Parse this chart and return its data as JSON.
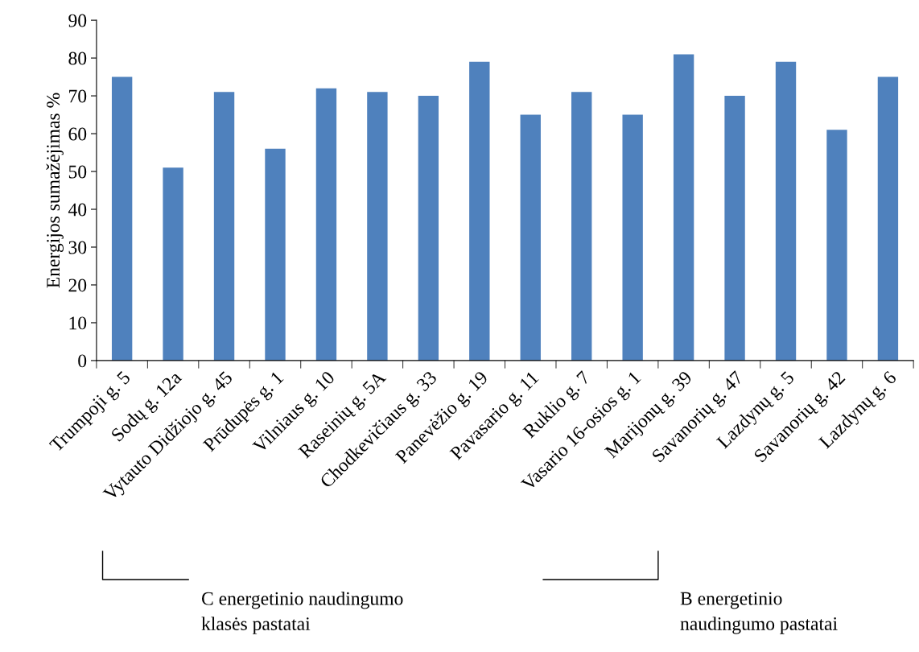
{
  "chart_data": {
    "type": "bar",
    "ylabel": "Energijos sumažėjimas %",
    "categories": [
      "Trumpoji g. 5",
      "Sodų g. 12a",
      "Vytauto Didžiojo g. 45",
      "Prūdupės g. 1",
      "Vilniaus g. 10",
      "Raseinių g. 5A",
      "Chodkevičiaus g. 33",
      "Panevėžio g. 19",
      "Pavasario g. 11",
      "Ruklio g. 7",
      "Vasario 16-osios g. 1",
      "Marijonų g. 39",
      "Savanorių g. 47",
      "Lazdynų g. 5",
      "Savanorių g. 42",
      "Lazdynų g. 6"
    ],
    "values": [
      75,
      51,
      71,
      56,
      72,
      71,
      70,
      79,
      65,
      71,
      65,
      81,
      70,
      79,
      61,
      75
    ],
    "color": "#4f81bd",
    "ylim": [
      0,
      90
    ],
    "yticks": [
      0,
      10,
      20,
      30,
      40,
      50,
      60,
      70,
      80,
      90
    ],
    "grid": false,
    "annotations": [
      "C energetinio naudingumo\nklasės pastatai",
      "B energetinio\nnaudingumo pastatai"
    ]
  }
}
